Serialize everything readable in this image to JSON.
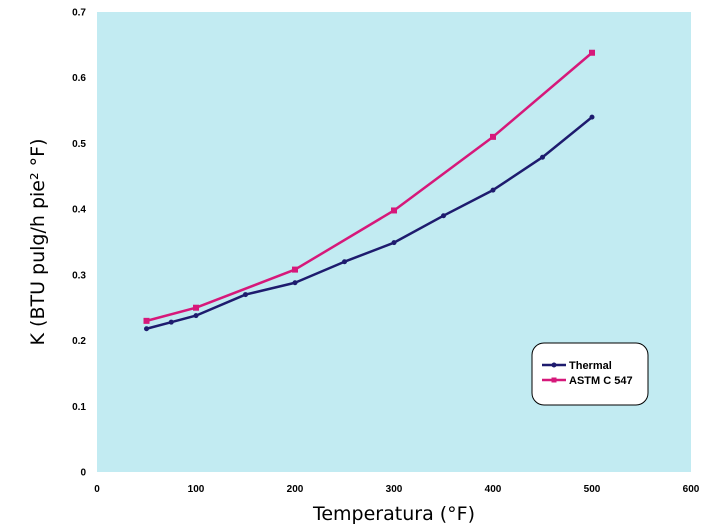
{
  "chart_data": {
    "type": "line",
    "xlabel": "Temperatura (°F)",
    "ylabel": "K (BTU pulg/h pie² °F)",
    "xlim": [
      0,
      600
    ],
    "ylim": [
      0,
      0.7
    ],
    "xticks": [
      0,
      100,
      200,
      300,
      400,
      500,
      600
    ],
    "yticks": [
      0,
      0.1,
      0.2,
      0.3,
      0.4,
      0.5,
      0.6,
      0.7
    ],
    "xtick_labels": [
      "0",
      "100",
      "200",
      "300",
      "400",
      "500",
      "600"
    ],
    "ytick_labels": [
      "0",
      "0.1",
      "0.2",
      "0.3",
      "0.4",
      "0.5",
      "0.6",
      "0.7"
    ],
    "grid": false,
    "plot_background": "#c2ebf2",
    "legend_position": "lower-right",
    "series": [
      {
        "name": "Thermal",
        "color": "#1e1b6e",
        "marker": "circle",
        "points": [
          [
            50,
            0.218
          ],
          [
            75,
            0.228
          ],
          [
            100,
            0.238
          ],
          [
            150,
            0.27
          ],
          [
            200,
            0.288
          ],
          [
            250,
            0.32
          ],
          [
            300,
            0.349
          ],
          [
            350,
            0.39
          ],
          [
            400,
            0.429
          ],
          [
            450,
            0.479
          ],
          [
            500,
            0.54
          ]
        ]
      },
      {
        "name": "ASTM C 547",
        "color": "#d6187a",
        "marker": "square",
        "points": [
          [
            50,
            0.23
          ],
          [
            100,
            0.25
          ],
          [
            200,
            0.308
          ],
          [
            300,
            0.398
          ],
          [
            400,
            0.51
          ],
          [
            500,
            0.638
          ]
        ]
      }
    ]
  }
}
